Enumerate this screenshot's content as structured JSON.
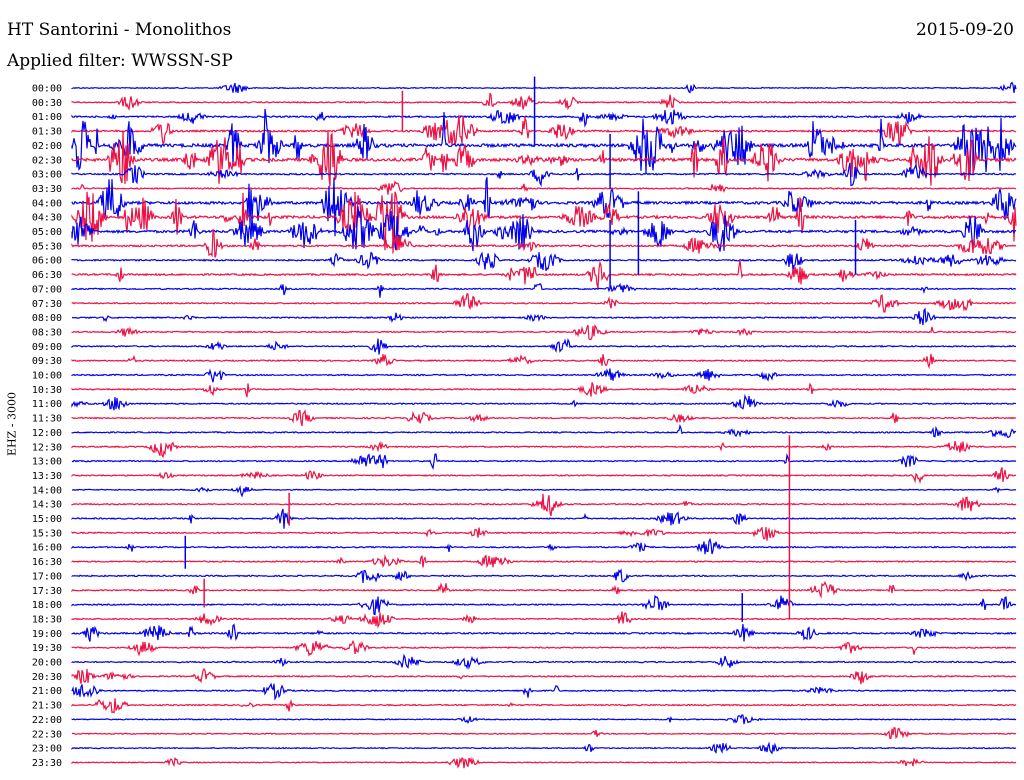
{
  "header": {
    "title": "HT Santorini - Monolithos",
    "date": "2015-09-20",
    "filter": "Applied filter: WWSSN-SP"
  },
  "chart_data": {
    "type": "line",
    "title": "HT Santorini - Monolithos",
    "ylabel": "EHZ - 3000",
    "trace_colors": [
      "#0000ee",
      "#ee1144"
    ],
    "tick_labels": [
      "00:00",
      "00:30",
      "01:00",
      "01:30",
      "02:00",
      "02:30",
      "03:00",
      "03:30",
      "04:00",
      "04:30",
      "05:00",
      "05:30",
      "06:00",
      "06:30",
      "07:00",
      "07:30",
      "08:00",
      "08:30",
      "09:00",
      "09:30",
      "10:00",
      "10:30",
      "11:00",
      "11:30",
      "12:00",
      "12:30",
      "13:00",
      "13:30",
      "14:00",
      "14:30",
      "15:00",
      "15:30",
      "16:00",
      "16:30",
      "17:00",
      "17:30",
      "18:00",
      "18:30",
      "19:00",
      "19:30",
      "20:00",
      "20:30",
      "21:00",
      "21:30",
      "22:00",
      "22:30",
      "23:00",
      "23:30"
    ],
    "trace_activity": [
      1,
      2,
      3,
      4,
      10,
      9,
      3,
      2,
      8,
      8,
      7,
      4,
      3,
      4,
      2,
      2,
      2,
      2,
      2,
      2,
      2,
      2,
      2,
      2,
      2,
      2,
      2,
      2,
      1,
      2,
      2,
      2,
      2,
      2,
      2,
      2,
      2,
      2,
      3,
      2,
      2,
      2,
      2,
      2,
      1,
      1,
      1,
      1
    ],
    "events": [
      {
        "row": 0,
        "t": 0.49,
        "amp": 4
      },
      {
        "row": 1,
        "t": 0.35,
        "amp": 2
      },
      {
        "row": 4,
        "t": 0.57,
        "amp": 3
      },
      {
        "row": 8,
        "t": 0.6,
        "amp": 5
      },
      {
        "row": 10,
        "t": 0.57,
        "amp": 4
      },
      {
        "row": 10,
        "t": 0.83,
        "amp": 3
      },
      {
        "row": 25,
        "t": 0.76,
        "amp": 12
      },
      {
        "row": 29,
        "t": 0.23,
        "amp": 1.5
      },
      {
        "row": 32,
        "t": 0.12,
        "amp": 1.5
      },
      {
        "row": 35,
        "t": 0.14,
        "amp": 1.2
      },
      {
        "row": 36,
        "t": 0.71,
        "amp": 1.2
      }
    ]
  }
}
